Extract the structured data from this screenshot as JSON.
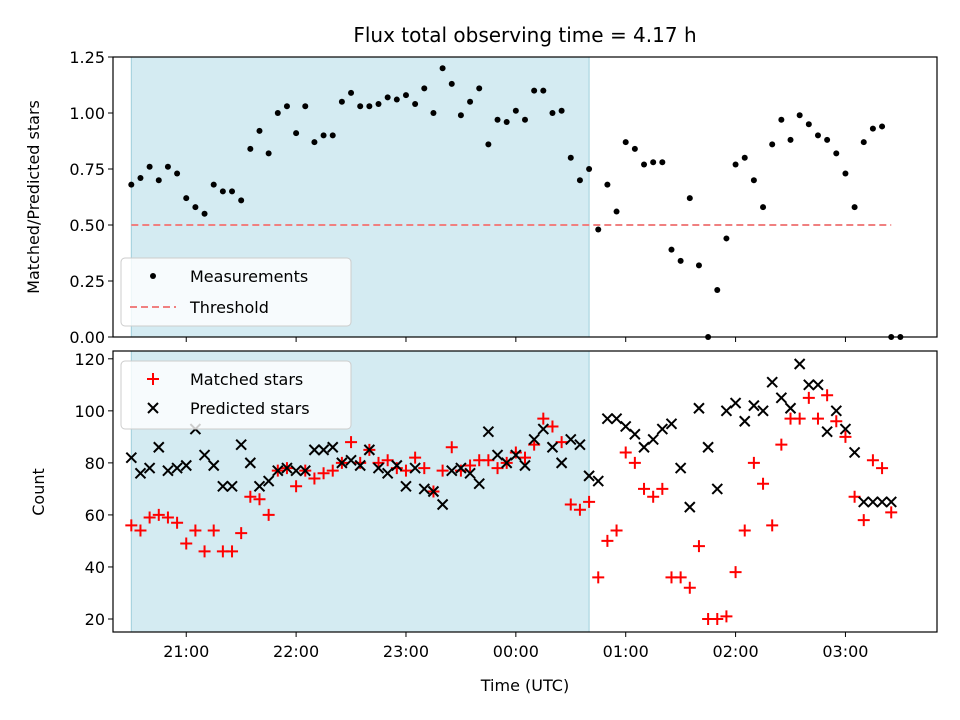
{
  "title": "Flux total observing time = 4.17 h",
  "chart_data": [
    {
      "type": "scatter",
      "ylabel": "Matched/Predicted stars",
      "xlabel": "",
      "xlim": [
        "20:20",
        "03:50"
      ],
      "ylim": [
        0,
        1.25
      ],
      "yticks": [
        "0.00",
        "0.25",
        "0.50",
        "0.75",
        "1.00",
        "1.25"
      ],
      "shaded_interval": [
        "20:30",
        "00:40"
      ],
      "legend_position": "lower-left",
      "series": [
        {
          "name": "Measurements",
          "color": "#000000",
          "marker": "dot",
          "x": [
            "20:30",
            "20:35",
            "20:40",
            "20:45",
            "20:50",
            "20:55",
            "21:00",
            "21:05",
            "21:10",
            "21:15",
            "21:20",
            "21:25",
            "21:30",
            "21:35",
            "21:40",
            "21:45",
            "21:50",
            "21:55",
            "22:00",
            "22:05",
            "22:10",
            "22:15",
            "22:20",
            "22:25",
            "22:30",
            "22:35",
            "22:40",
            "22:45",
            "22:50",
            "22:55",
            "23:00",
            "23:05",
            "23:10",
            "23:15",
            "23:20",
            "23:25",
            "23:30",
            "23:35",
            "23:40",
            "23:45",
            "23:50",
            "23:55",
            "00:00",
            "00:05",
            "00:10",
            "00:15",
            "00:20",
            "00:25",
            "00:30",
            "00:35",
            "00:40",
            "00:45",
            "00:50",
            "00:55",
            "01:00",
            "01:05",
            "01:10",
            "01:15",
            "01:20",
            "01:25",
            "01:30",
            "01:35",
            "01:40",
            "01:45",
            "01:50",
            "01:55",
            "02:00",
            "02:05",
            "02:10",
            "02:15",
            "02:20",
            "02:25",
            "02:30",
            "02:35",
            "02:40",
            "02:45",
            "02:50",
            "02:55",
            "03:00",
            "03:05",
            "03:10",
            "03:15",
            "03:20",
            "03:25",
            "03:30"
          ],
          "y": [
            0.68,
            0.71,
            0.76,
            0.7,
            0.76,
            0.73,
            0.62,
            0.58,
            0.55,
            0.68,
            0.65,
            0.65,
            0.61,
            0.84,
            0.92,
            0.82,
            1.0,
            1.03,
            0.91,
            1.03,
            0.87,
            0.9,
            0.9,
            1.05,
            1.09,
            1.03,
            1.03,
            1.04,
            1.07,
            1.06,
            1.08,
            1.04,
            1.11,
            1.0,
            1.2,
            1.13,
            0.99,
            1.05,
            1.11,
            0.86,
            0.97,
            0.96,
            1.01,
            0.97,
            1.1,
            1.1,
            1.0,
            1.01,
            0.8,
            0.7,
            0.75,
            0.48,
            0.68,
            0.56,
            0.87,
            0.84,
            0.77,
            0.78,
            0.78,
            0.39,
            0.34,
            0.62,
            0.32,
            0.0,
            0.21,
            0.44,
            0.77,
            0.8,
            0.7,
            0.58,
            0.86,
            0.97,
            0.88,
            0.99,
            0.95,
            0.9,
            0.88,
            0.82,
            0.73,
            0.58,
            0.87,
            0.93,
            0.94,
            0.0,
            0.0
          ]
        },
        {
          "name": "Threshold",
          "color": "#f08080",
          "style": "dashed",
          "x": [
            "20:30",
            "03:25"
          ],
          "y": [
            0.5,
            0.5
          ]
        }
      ]
    },
    {
      "type": "scatter",
      "ylabel": "Count",
      "xlabel": "Time (UTC)",
      "xlim": [
        "20:20",
        "03:50"
      ],
      "ylim": [
        15,
        123
      ],
      "yticks": [
        "20",
        "40",
        "60",
        "80",
        "100",
        "120"
      ],
      "xticks": [
        "21:00",
        "22:00",
        "23:00",
        "00:00",
        "01:00",
        "02:00",
        "03:00"
      ],
      "shaded_interval": [
        "20:30",
        "00:40"
      ],
      "legend_position": "upper-left",
      "series": [
        {
          "name": "Matched stars",
          "color": "#ff0000",
          "marker": "plus",
          "x": [
            "20:30",
            "20:35",
            "20:40",
            "20:45",
            "20:50",
            "20:55",
            "21:00",
            "21:05",
            "21:10",
            "21:15",
            "21:20",
            "21:25",
            "21:30",
            "21:35",
            "21:40",
            "21:45",
            "21:50",
            "21:55",
            "22:00",
            "22:05",
            "22:10",
            "22:15",
            "22:20",
            "22:25",
            "22:30",
            "22:35",
            "22:40",
            "22:45",
            "22:50",
            "22:55",
            "23:00",
            "23:05",
            "23:10",
            "23:15",
            "23:20",
            "23:25",
            "23:30",
            "23:35",
            "23:40",
            "23:45",
            "23:50",
            "23:55",
            "00:00",
            "00:05",
            "00:10",
            "00:15",
            "00:20",
            "00:25",
            "00:30",
            "00:35",
            "00:40",
            "00:45",
            "00:50",
            "00:55",
            "01:00",
            "01:05",
            "01:10",
            "01:15",
            "01:20",
            "01:25",
            "01:30",
            "01:35",
            "01:40",
            "01:45",
            "01:50",
            "01:55",
            "02:00",
            "02:05",
            "02:10",
            "02:15",
            "02:20",
            "02:25",
            "02:30",
            "02:35",
            "02:40",
            "02:45",
            "02:50",
            "02:55",
            "03:00",
            "03:05",
            "03:10",
            "03:15",
            "03:20",
            "03:25"
          ],
          "y": [
            56,
            54,
            59,
            60,
            59,
            57,
            49,
            54,
            46,
            54,
            46,
            46,
            53,
            67,
            66,
            60,
            77,
            78,
            71,
            77,
            74,
            76,
            77,
            80,
            88,
            80,
            85,
            80,
            81,
            78,
            77,
            82,
            78,
            69,
            77,
            86,
            77,
            79,
            81,
            81,
            78,
            80,
            84,
            82,
            87,
            97,
            94,
            88,
            64,
            62,
            65,
            36,
            50,
            54,
            84,
            80,
            70,
            67,
            70,
            36,
            36,
            32,
            48,
            20,
            20,
            21,
            38,
            54,
            80,
            72,
            56,
            87,
            97,
            97,
            105,
            97,
            106,
            96,
            90,
            67,
            58,
            81,
            78,
            61
          ]
        },
        {
          "name": "Predicted stars",
          "color": "#000000",
          "marker": "x",
          "x": [
            "20:30",
            "20:35",
            "20:40",
            "20:45",
            "20:50",
            "20:55",
            "21:00",
            "21:05",
            "21:10",
            "21:15",
            "21:20",
            "21:25",
            "21:30",
            "21:35",
            "21:40",
            "21:45",
            "21:50",
            "21:55",
            "22:00",
            "22:05",
            "22:10",
            "22:15",
            "22:20",
            "22:25",
            "22:30",
            "22:35",
            "22:40",
            "22:45",
            "22:50",
            "22:55",
            "23:00",
            "23:05",
            "23:10",
            "23:15",
            "23:20",
            "23:25",
            "23:30",
            "23:35",
            "23:40",
            "23:45",
            "23:50",
            "23:55",
            "00:00",
            "00:05",
            "00:10",
            "00:15",
            "00:20",
            "00:25",
            "00:30",
            "00:35",
            "00:40",
            "00:45",
            "00:50",
            "00:55",
            "01:00",
            "01:05",
            "01:10",
            "01:15",
            "01:20",
            "01:25",
            "01:30",
            "01:35",
            "01:40",
            "01:45",
            "01:50",
            "01:55",
            "02:00",
            "02:05",
            "02:10",
            "02:15",
            "02:20",
            "02:25",
            "02:30",
            "02:35",
            "02:40",
            "02:45",
            "02:50",
            "02:55",
            "03:00",
            "03:05",
            "03:10",
            "03:15",
            "03:20",
            "03:25"
          ],
          "y": [
            82,
            76,
            78,
            86,
            77,
            78,
            79,
            93,
            83,
            79,
            71,
            71,
            87,
            80,
            71,
            73,
            77,
            78,
            77,
            77,
            85,
            85,
            86,
            80,
            81,
            79,
            85,
            78,
            76,
            79,
            71,
            78,
            70,
            69,
            64,
            77,
            78,
            76,
            72,
            92,
            83,
            80,
            83,
            79,
            89,
            93,
            86,
            80,
            89,
            87,
            75,
            73,
            97,
            97,
            94,
            91,
            86,
            89,
            93,
            95,
            78,
            63,
            101,
            86,
            70,
            100,
            103,
            96,
            102,
            100,
            111,
            105,
            101,
            118,
            110,
            110,
            92,
            100,
            93,
            84,
            65,
            65,
            65,
            65
          ]
        }
      ]
    }
  ]
}
